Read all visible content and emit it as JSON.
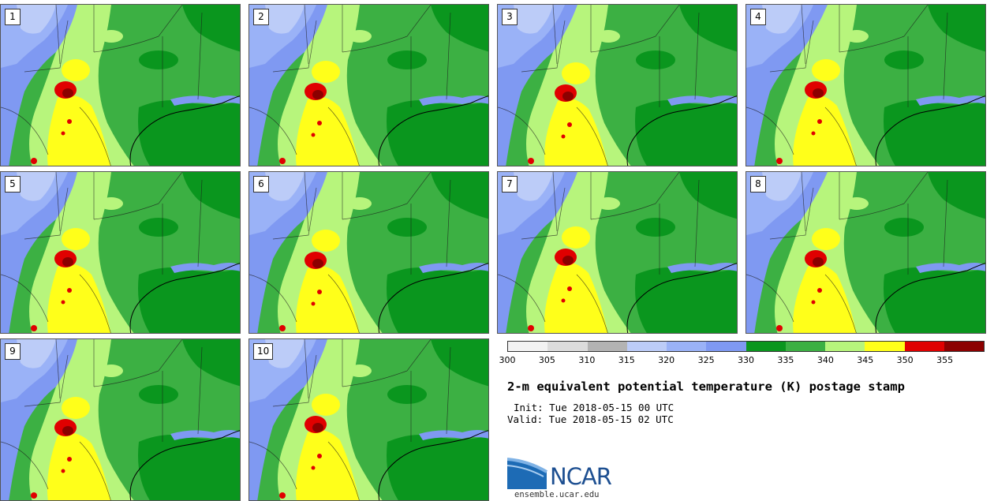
{
  "panels": [
    {
      "label": "1"
    },
    {
      "label": "2"
    },
    {
      "label": "3"
    },
    {
      "label": "4"
    },
    {
      "label": "5"
    },
    {
      "label": "6"
    },
    {
      "label": "7"
    },
    {
      "label": "8"
    },
    {
      "label": "9"
    },
    {
      "label": "10"
    }
  ],
  "colorbar": {
    "colors": [
      "#f2f2f2",
      "#dcdcdc",
      "#b3b3b3",
      "#bcccf8",
      "#9ab2f7",
      "#7f99f2",
      "#0a961e",
      "#3cb043",
      "#b7f57c",
      "#ffff1a",
      "#e00000",
      "#8c0000"
    ],
    "ticks": [
      "300",
      "305",
      "310",
      "315",
      "320",
      "325",
      "330",
      "335",
      "340",
      "345",
      "350",
      "355"
    ]
  },
  "title": "2-m equivalent potential temperature (K) postage stamp",
  "init_text": "Init: Tue 2018-05-15 00 UTC",
  "valid_text": "Valid: Tue 2018-05-15 02 UTC",
  "logo": {
    "name": "NCAR",
    "url": "ensemble.ucar.edu"
  }
}
